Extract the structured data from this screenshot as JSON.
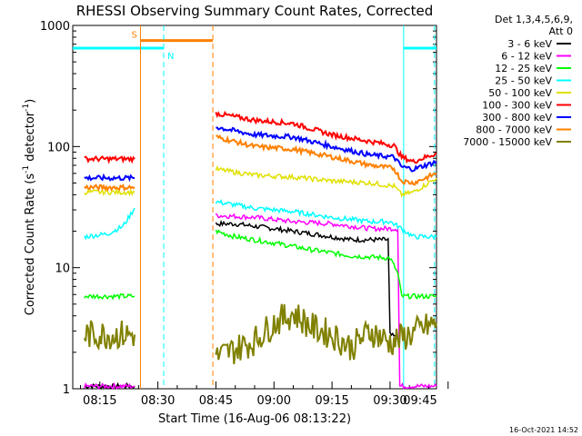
{
  "chart_data": {
    "type": "line",
    "title": "RHESSI Observing Summary Count Rates, Corrected",
    "xlabel": "Start Time (16-Aug-06 08:13:22)",
    "ylabel_main": "Corrected Count Rate (s",
    "ylabel_sup1": "-1",
    "ylabel_mid": " detector",
    "ylabel_sup2": "-1",
    "ylabel_end": ")",
    "ylog": true,
    "ylim": [
      1,
      1000
    ],
    "xlim_minutes": [
      8.0,
      102.0
    ],
    "x_ticks": [
      {
        "label": "08:15",
        "min": 15
      },
      {
        "label": "08:30",
        "min": 30
      },
      {
        "label": "08:45",
        "min": 45
      },
      {
        "label": "09:00",
        "min": 60
      },
      {
        "label": "09:15",
        "min": 75
      },
      {
        "label": "09:30",
        "min": 90
      },
      {
        "label": "09:45",
        "min": 105
      }
    ],
    "y_ticks": [
      {
        "label": "1",
        "value": 1
      },
      {
        "label": "10",
        "value": 10
      },
      {
        "label": "100",
        "value": 100
      },
      {
        "label": "1000",
        "value": 1000
      }
    ],
    "legend_header": [
      "Det 1,3,4,5,6,9,",
      "Att 0"
    ],
    "series": [
      {
        "name": "3 - 6 keV",
        "color": "#000000",
        "segments": [
          [
            [
              11,
              1.05
            ],
            [
              24,
              1.05
            ]
          ],
          [
            [
              45,
              23
            ],
            [
              50,
              23
            ],
            [
              60,
              21
            ],
            [
              70,
              19
            ],
            [
              80,
              17
            ],
            [
              89.5,
              17
            ],
            [
              90,
              2.8
            ],
            [
              92,
              2.6
            ]
          ]
        ]
      },
      {
        "name": "6 - 12 keV",
        "color": "#ff00ff",
        "segments": [
          [
            [
              11,
              1.05
            ],
            [
              24,
              1.05
            ]
          ],
          [
            [
              45,
              27
            ],
            [
              55,
              26
            ],
            [
              65,
              24
            ],
            [
              75,
              23
            ],
            [
              85,
              21
            ],
            [
              92,
              21
            ],
            [
              92.5,
              1.05
            ],
            [
              102,
              1.05
            ]
          ]
        ]
      },
      {
        "name": "12 - 25 keV",
        "color": "#00ff00",
        "segments": [
          [
            [
              11,
              5.8
            ],
            [
              24,
              5.8
            ]
          ],
          [
            [
              45,
              20
            ],
            [
              50,
              18
            ],
            [
              60,
              16
            ],
            [
              70,
              14
            ],
            [
              80,
              12.5
            ],
            [
              90,
              12
            ],
            [
              92,
              9
            ],
            [
              93,
              5.8
            ],
            [
              102,
              5.8
            ]
          ]
        ]
      },
      {
        "name": "25 - 50 keV",
        "color": "#00ffff",
        "segments": [
          [
            [
              11,
              18
            ],
            [
              17,
              19
            ],
            [
              21,
              22
            ],
            [
              24,
              31
            ]
          ],
          [
            [
              45,
              35
            ],
            [
              55,
              31
            ],
            [
              65,
              29
            ],
            [
              75,
              26
            ],
            [
              85,
              24
            ],
            [
              90,
              24
            ],
            [
              92,
              22
            ],
            [
              96,
              18
            ],
            [
              102,
              18
            ]
          ]
        ]
      },
      {
        "name": "50 - 100 keV",
        "color": "#e0e000",
        "segments": [
          [
            [
              11,
              42
            ],
            [
              24,
              42
            ]
          ],
          [
            [
              45,
              65
            ],
            [
              55,
              58
            ],
            [
              65,
              56
            ],
            [
              75,
              52
            ],
            [
              85,
              50
            ],
            [
              91,
              47
            ],
            [
              93,
              40
            ],
            [
              96,
              42
            ],
            [
              102,
              55
            ]
          ]
        ]
      },
      {
        "name": "100 - 300 keV",
        "color": "#ff0000",
        "segments": [
          [
            [
              11,
              79
            ],
            [
              24,
              79
            ]
          ],
          [
            [
              45,
              188
            ],
            [
              55,
              165
            ],
            [
              65,
              155
            ],
            [
              75,
              125
            ],
            [
              85,
              110
            ],
            [
              91,
              102
            ],
            [
              93,
              82
            ],
            [
              96,
              75
            ],
            [
              102,
              88
            ]
          ]
        ]
      },
      {
        "name": "300 - 800 keV",
        "color": "#0000ff",
        "segments": [
          [
            [
              11,
              55
            ],
            [
              24,
              55
            ]
          ],
          [
            [
              45,
              145
            ],
            [
              55,
              125
            ],
            [
              65,
              120
            ],
            [
              75,
              100
            ],
            [
              85,
              85
            ],
            [
              91,
              82
            ],
            [
              93,
              68
            ],
            [
              96,
              65
            ],
            [
              102,
              75
            ]
          ]
        ]
      },
      {
        "name": "800 - 7000 keV",
        "color": "#ff8000",
        "segments": [
          [
            [
              11,
              46
            ],
            [
              24,
              46
            ]
          ],
          [
            [
              45,
              120
            ],
            [
              55,
              100
            ],
            [
              65,
              95
            ],
            [
              75,
              82
            ],
            [
              85,
              70
            ],
            [
              91,
              66
            ],
            [
              93,
              52
            ],
            [
              96,
              50
            ],
            [
              102,
              60
            ]
          ]
        ]
      },
      {
        "name": "7000 - 15000 keV",
        "color": "#808000",
        "segments": [
          [
            [
              11,
              2.8
            ],
            [
              24,
              2.8
            ]
          ],
          [
            [
              45,
              1.8
            ],
            [
              55,
              2.5
            ],
            [
              60,
              3.5
            ],
            [
              65,
              4.2
            ],
            [
              70,
              3.2
            ],
            [
              75,
              2.8
            ],
            [
              80,
              2.2
            ],
            [
              85,
              3.0
            ],
            [
              90,
              2.4
            ],
            [
              95,
              2.8
            ],
            [
              102,
              3.5
            ]
          ]
        ]
      }
    ],
    "markers": {
      "saa": {
        "label": "S",
        "start_min": 25.5,
        "end_min": 44.2,
        "y_value": 750
      },
      "night": {
        "label": "N",
        "min": 31.5,
        "y_value": 650
      },
      "night_bars": [
        [
          8,
          31.5
        ],
        [
          93.5,
          102
        ]
      ],
      "orange_verticals": [
        25.5,
        44.2
      ],
      "cyan_dashed": [
        31.5,
        101.5
      ],
      "cyan_solid": [
        93.5
      ]
    },
    "footer_stamp": "16-Oct-2021 14:52"
  }
}
